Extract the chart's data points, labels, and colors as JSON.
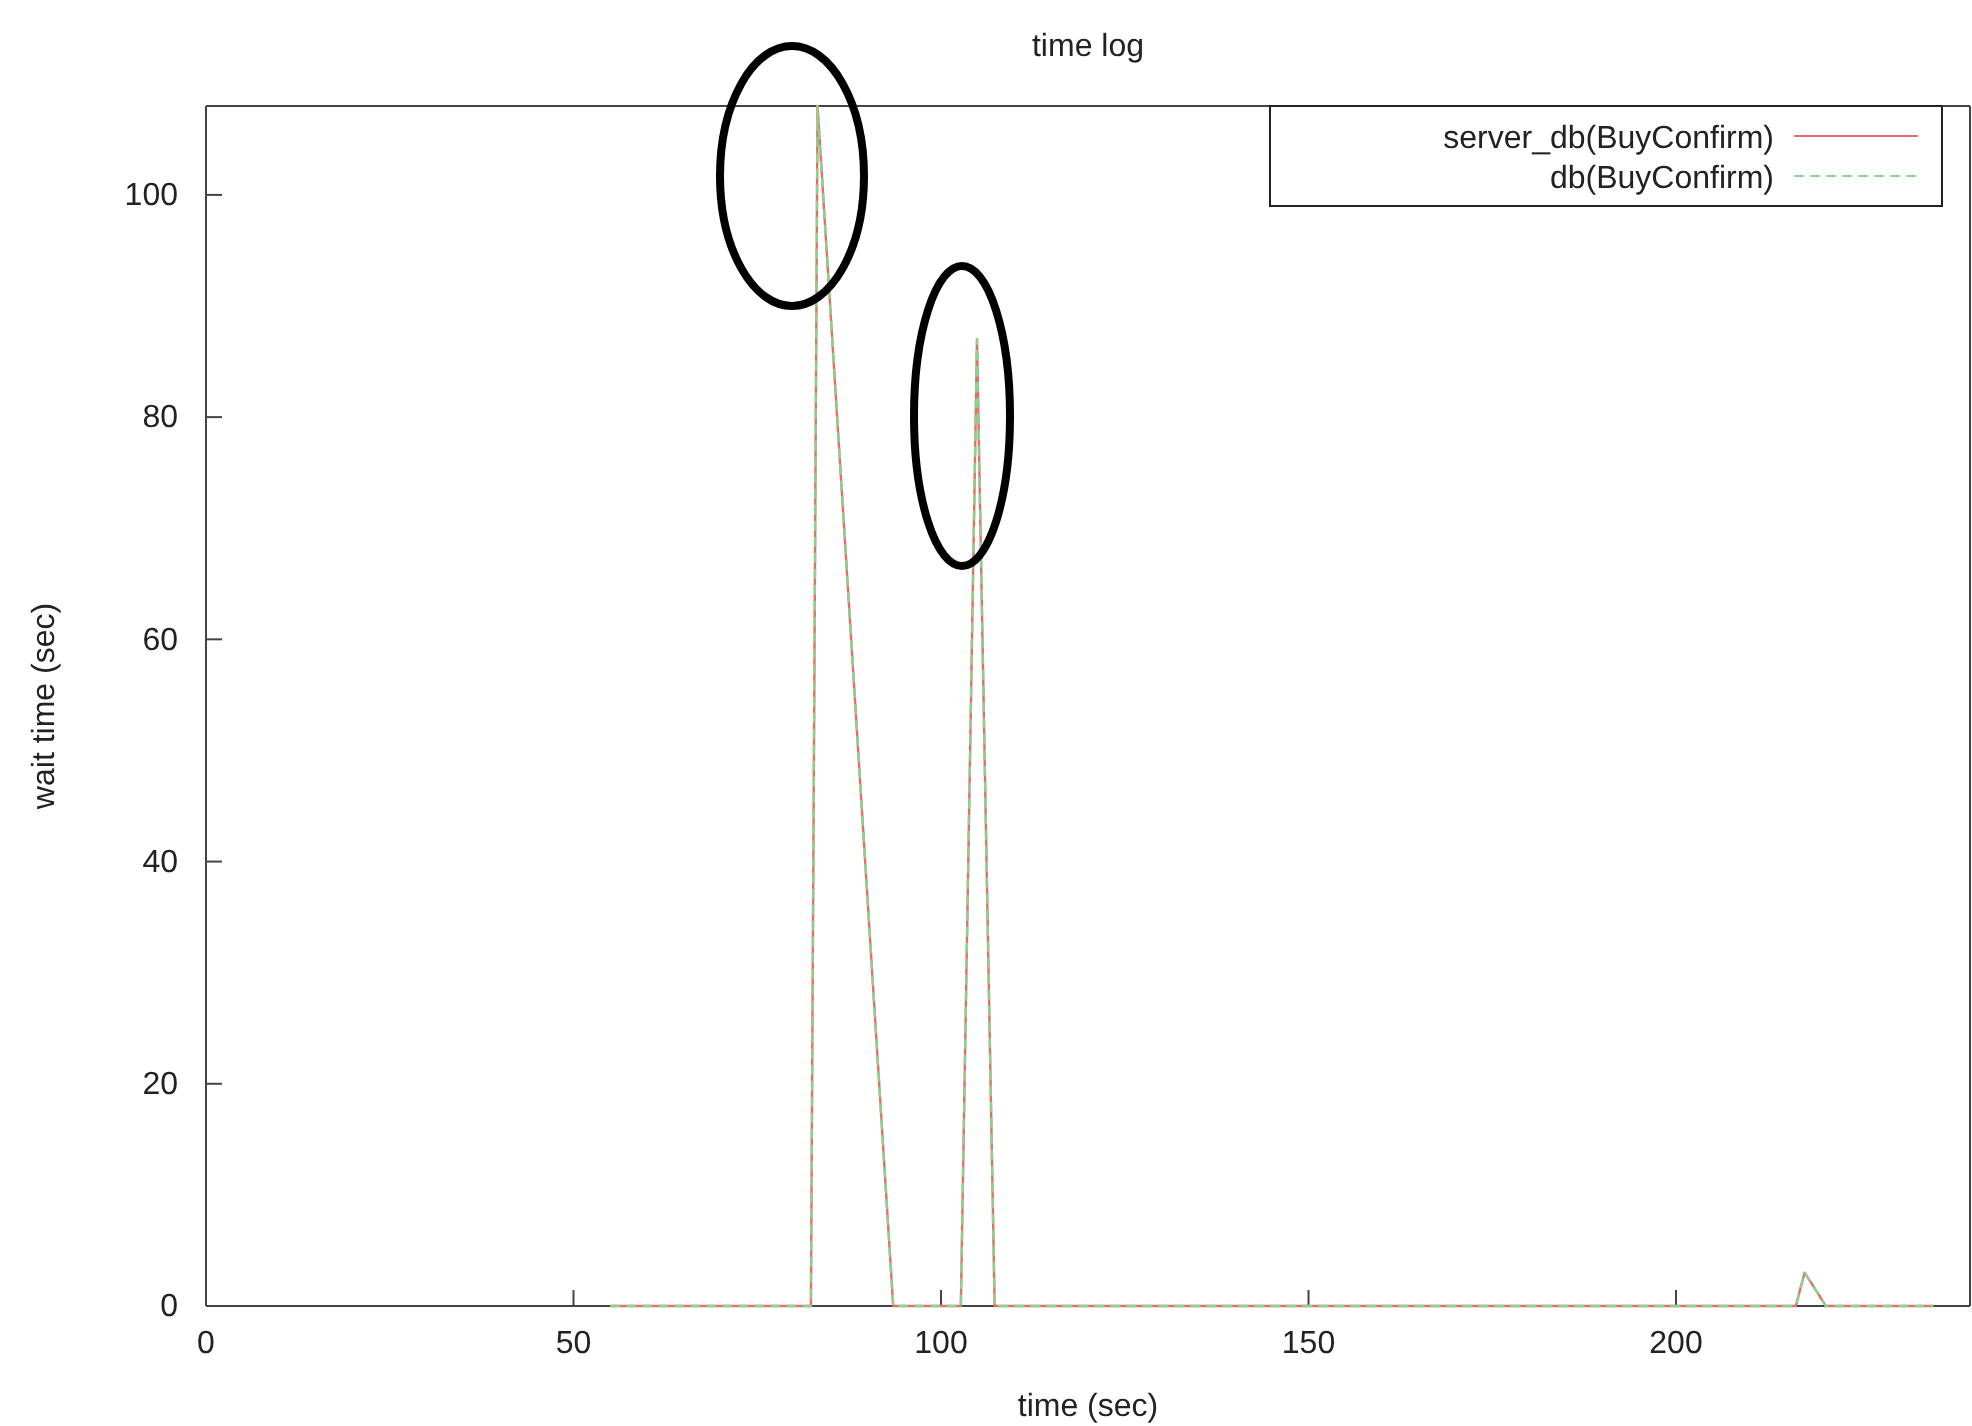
{
  "chart_data": {
    "type": "line",
    "title": "time log",
    "xlabel": "time (sec)",
    "ylabel": "wait time (sec)",
    "xlim": [
      0,
      240
    ],
    "xticks": [
      0,
      50,
      100,
      150,
      200
    ],
    "ylim": [
      0,
      108
    ],
    "yticks": [
      0,
      20,
      40,
      60,
      80,
      100
    ],
    "grid": false,
    "legend": "top right",
    "marker": "none",
    "series": [
      {
        "name": "server_db(BuyConfirm)",
        "color": "#e07070",
        "line_style": "solid",
        "x": [
          55,
          82.3,
          83.2,
          93.5,
          102.7,
          104.9,
          107.3,
          216.3,
          217.5,
          220.4,
          235
        ],
        "values": [
          0,
          0,
          108,
          0,
          0,
          87,
          0,
          0,
          3,
          0,
          0
        ]
      },
      {
        "name": "db(BuyConfirm)",
        "color": "#8fd08f",
        "line_style": "dashed",
        "x": [
          55,
          82.3,
          83.2,
          93.5,
          102.7,
          104.9,
          107.3,
          216.3,
          217.5,
          220.4,
          235
        ],
        "values": [
          0,
          0,
          108,
          0,
          0,
          87,
          0,
          0,
          3,
          0,
          0
        ]
      }
    ]
  }
}
